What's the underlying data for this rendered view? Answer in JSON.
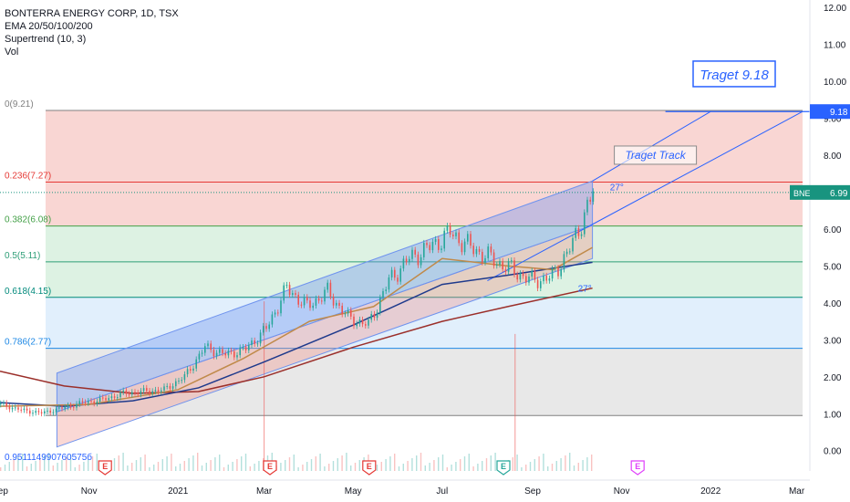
{
  "legend": {
    "title": "BONTERRA ENERGY CORP, 1D, TSX",
    "ema": "EMA 20/50/100/200",
    "supertrend": "Supertrend (10, 3)",
    "vol": "Vol"
  },
  "colors": {
    "background": "#ffffff",
    "fib_red_zone": "#f7c8c4",
    "fib_green_zone": "#d2eed9",
    "fib_blue_zone": "#d7e9fb",
    "fib_gray_zone": "#e0e0e0",
    "channel_blue": "#6f93ee",
    "channel_red": "#f08f86",
    "ema200": "#9b2f2a",
    "ema100": "#1f3a8c",
    "candle_up": "#26a69a",
    "candle_down": "#ef5350",
    "price_tag": "#18947f",
    "target_blue": "#2962ff"
  },
  "annotations": {
    "target_label": "Traget 9.18",
    "track_label": "Traget Track",
    "angle_upper": "27°",
    "angle_lower": "27°",
    "low_value": "0.951114990760575б"
  },
  "price_tags": {
    "ticker": "BNE",
    "last": "6.99",
    "target": "9.18"
  },
  "earnings_marker": "E",
  "chart_data": {
    "type": "candlestick",
    "y_axis": {
      "ylim": [
        -0.55,
        12.2
      ],
      "ticks": [
        "0.00",
        "1.00",
        "2.00",
        "3.00",
        "4.00",
        "5.00",
        "6.00",
        "7.00",
        "8.00",
        "9.00",
        "10.00",
        "11.00",
        "12.00"
      ]
    },
    "x_axis": {
      "range": [
        "2020-09-01",
        "2022-03-10"
      ],
      "ticks": [
        {
          "label": "Sep",
          "date": "2020-09-01"
        },
        {
          "label": "Nov",
          "date": "2020-11-01"
        },
        {
          "label": "2021",
          "date": "2021-01-01"
        },
        {
          "label": "Mar",
          "date": "2021-03-01"
        },
        {
          "label": "May",
          "date": "2021-05-01"
        },
        {
          "label": "Jul",
          "date": "2021-07-01"
        },
        {
          "label": "Sep",
          "date": "2021-09-01"
        },
        {
          "label": "Nov",
          "date": "2021-11-01"
        },
        {
          "label": "2022",
          "date": "2022-01-01"
        },
        {
          "label": "Mar",
          "date": "2022-03-01"
        }
      ]
    },
    "fib_levels": [
      {
        "ratio": "0",
        "price": 9.21,
        "label": "0(9.21)",
        "color": "#808080"
      },
      {
        "ratio": "0.236",
        "price": 7.27,
        "label": "0.236(7.27)",
        "color": "#e53935"
      },
      {
        "ratio": "0.382",
        "price": 6.08,
        "label": "0.382(6.08)",
        "color": "#43a047"
      },
      {
        "ratio": "0.5",
        "price": 5.11,
        "label": "0.5(5.11)",
        "color": "#2e9e77"
      },
      {
        "ratio": "0.618",
        "price": 4.15,
        "label": "0.618(4.15)",
        "color": "#00897b"
      },
      {
        "ratio": "0.786",
        "price": 2.77,
        "label": "0.786(2.77)",
        "color": "#1e88e5"
      },
      {
        "ratio": "1",
        "price": 0.95,
        "label": "",
        "color": "#808080"
      }
    ],
    "fib_range_dates": [
      "2020-09-01",
      "2022-03-05"
    ],
    "channel": {
      "upper_start": [
        "2020-10-10",
        2.1
      ],
      "upper_end": [
        "2021-10-12",
        7.3
      ],
      "lower_start": [
        "2020-10-10",
        1.05
      ],
      "lower_end": [
        "2021-10-12",
        6.1
      ],
      "bottom_start": [
        "2020-10-10",
        0.1
      ],
      "bottom_end": [
        "2021-10-12",
        5.2
      ]
    },
    "target_track": {
      "upper": [
        [
          "2021-10-12",
          7.3
        ],
        [
          "2022-01-01",
          9.18
        ]
      ],
      "lower": [
        [
          "2021-08-01",
          4.6
        ],
        [
          "2022-03-05",
          9.18
        ]
      ]
    },
    "target_line": {
      "price": 9.18,
      "from": "2021-12-01"
    },
    "last_price_line": {
      "price": 6.99,
      "from": "2021-10-12"
    },
    "earnings_dates": [
      {
        "date": "2020-11-12",
        "color": "#e53935"
      },
      {
        "date": "2021-03-05",
        "color": "#e53935"
      },
      {
        "date": "2021-05-12",
        "color": "#e53935"
      },
      {
        "date": "2021-08-12",
        "color": "#26a69a"
      },
      {
        "date": "2021-11-12",
        "color": "#e040fb"
      }
    ],
    "series": [
      {
        "name": "close",
        "points": [
          [
            "2020-09-01",
            1.25
          ],
          [
            "2020-09-15",
            1.1
          ],
          [
            "2020-09-29",
            1.02
          ],
          [
            "2020-10-13",
            1.15
          ],
          [
            "2020-10-27",
            1.3
          ],
          [
            "2020-11-10",
            1.38
          ],
          [
            "2020-11-24",
            1.55
          ],
          [
            "2020-12-08",
            1.6
          ],
          [
            "2020-12-22",
            1.65
          ],
          [
            "2021-01-05",
            2.0
          ],
          [
            "2021-01-19",
            2.8
          ],
          [
            "2021-02-02",
            2.6
          ],
          [
            "2021-02-16",
            2.75
          ],
          [
            "2021-03-02",
            3.3
          ],
          [
            "2021-03-16",
            4.4
          ],
          [
            "2021-03-30",
            3.9
          ],
          [
            "2021-04-13",
            4.3
          ],
          [
            "2021-04-27",
            3.6
          ],
          [
            "2021-05-11",
            3.4
          ],
          [
            "2021-05-25",
            4.6
          ],
          [
            "2021-06-08",
            5.2
          ],
          [
            "2021-06-22",
            5.5
          ],
          [
            "2021-07-06",
            5.9
          ],
          [
            "2021-07-20",
            5.5
          ],
          [
            "2021-08-03",
            5.2
          ],
          [
            "2021-08-17",
            4.9
          ],
          [
            "2021-08-31",
            4.6
          ],
          [
            "2021-09-14",
            4.7
          ],
          [
            "2021-09-28",
            5.6
          ],
          [
            "2021-10-12",
            6.99
          ]
        ]
      },
      {
        "name": "EMA 200",
        "points": [
          [
            "2020-09-01",
            2.15
          ],
          [
            "2020-10-15",
            1.75
          ],
          [
            "2020-12-01",
            1.55
          ],
          [
            "2021-01-15",
            1.6
          ],
          [
            "2021-03-01",
            2.0
          ],
          [
            "2021-05-01",
            2.8
          ],
          [
            "2021-07-01",
            3.5
          ],
          [
            "2021-08-15",
            3.9
          ],
          [
            "2021-10-12",
            4.4
          ]
        ]
      },
      {
        "name": "EMA 100",
        "points": [
          [
            "2020-09-01",
            1.3
          ],
          [
            "2020-10-15",
            1.2
          ],
          [
            "2020-12-01",
            1.35
          ],
          [
            "2021-01-15",
            1.7
          ],
          [
            "2021-03-01",
            2.4
          ],
          [
            "2021-05-01",
            3.4
          ],
          [
            "2021-07-01",
            4.5
          ],
          [
            "2021-08-15",
            4.75
          ],
          [
            "2021-10-12",
            5.1
          ]
        ]
      },
      {
        "name": "EMA 50",
        "points": [
          [
            "2020-09-01",
            1.2
          ],
          [
            "2020-11-01",
            1.25
          ],
          [
            "2021-01-01",
            1.65
          ],
          [
            "2021-02-15",
            2.5
          ],
          [
            "2021-04-01",
            3.5
          ],
          [
            "2021-05-15",
            3.9
          ],
          [
            "2021-07-01",
            5.2
          ],
          [
            "2021-08-15",
            5.0
          ],
          [
            "2021-09-15",
            4.9
          ],
          [
            "2021-10-12",
            5.5
          ]
        ]
      }
    ],
    "volume_spikes": [
      {
        "date": "2021-03-01",
        "height": 0.52
      },
      {
        "date": "2021-08-20",
        "height": 0.42
      }
    ]
  }
}
